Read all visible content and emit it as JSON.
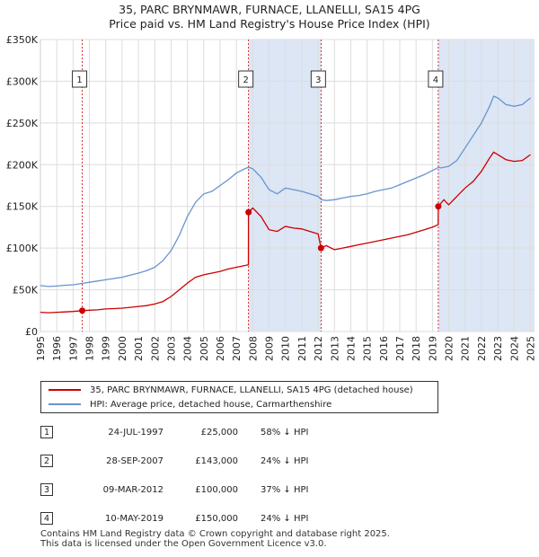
{
  "title_line1": "35, PARC BRYNMAWR, FURNACE, LLANELLI, SA15 4PG",
  "title_line2": "Price paid vs. HM Land Registry's House Price Index (HPI)",
  "chart_data": {
    "type": "line",
    "y_ticks": [
      {
        "value": 0,
        "label": "£0"
      },
      {
        "value": 50000,
        "label": "£50K"
      },
      {
        "value": 100000,
        "label": "£100K"
      },
      {
        "value": 150000,
        "label": "£150K"
      },
      {
        "value": 200000,
        "label": "£200K"
      },
      {
        "value": 250000,
        "label": "£250K"
      },
      {
        "value": 300000,
        "label": "£300K"
      },
      {
        "value": 350000,
        "label": "£350K"
      }
    ],
    "ylim": [
      0,
      350000
    ],
    "xlim": [
      1995.0,
      2025.25
    ],
    "x_ticks": [
      "1995",
      "1996",
      "1997",
      "1998",
      "1999",
      "2000",
      "2001",
      "2002",
      "2003",
      "2004",
      "2005",
      "2006",
      "2007",
      "2008",
      "2009",
      "2010",
      "2011",
      "2012",
      "2013",
      "2014",
      "2015",
      "2016",
      "2017",
      "2018",
      "2019",
      "2020",
      "2021",
      "2022",
      "2023",
      "2024",
      "2025"
    ],
    "colors": {
      "property": "#cc0000",
      "hpi": "#6a93cf",
      "shade": "#dce6f5",
      "marker_line": "#cc0000",
      "grid": "#dddddd"
    },
    "hpi_series": [
      [
        1995.0,
        55000
      ],
      [
        1995.5,
        54000
      ],
      [
        1996.0,
        54500
      ],
      [
        1996.5,
        55500
      ],
      [
        1997.0,
        56000
      ],
      [
        1997.5,
        57500
      ],
      [
        1998.0,
        59000
      ],
      [
        1998.5,
        60500
      ],
      [
        1999.0,
        62000
      ],
      [
        1999.5,
        63500
      ],
      [
        2000.0,
        65000
      ],
      [
        2000.5,
        67500
      ],
      [
        2001.0,
        70000
      ],
      [
        2001.5,
        73000
      ],
      [
        2002.0,
        77000
      ],
      [
        2002.5,
        85000
      ],
      [
        2003.0,
        97000
      ],
      [
        2003.5,
        115000
      ],
      [
        2004.0,
        138000
      ],
      [
        2004.5,
        155000
      ],
      [
        2005.0,
        165000
      ],
      [
        2005.5,
        168000
      ],
      [
        2006.0,
        175000
      ],
      [
        2006.5,
        182000
      ],
      [
        2007.0,
        190000
      ],
      [
        2007.5,
        195000
      ],
      [
        2007.75,
        197000
      ],
      [
        2008.0,
        195000
      ],
      [
        2008.5,
        185000
      ],
      [
        2009.0,
        170000
      ],
      [
        2009.5,
        165000
      ],
      [
        2010.0,
        172000
      ],
      [
        2010.5,
        170000
      ],
      [
        2011.0,
        168000
      ],
      [
        2011.5,
        165000
      ],
      [
        2012.0,
        162000
      ],
      [
        2012.2,
        158000
      ],
      [
        2012.5,
        157000
      ],
      [
        2013.0,
        158000
      ],
      [
        2013.5,
        160000
      ],
      [
        2014.0,
        162000
      ],
      [
        2014.5,
        163000
      ],
      [
        2015.0,
        165000
      ],
      [
        2015.5,
        168000
      ],
      [
        2016.0,
        170000
      ],
      [
        2016.5,
        172000
      ],
      [
        2017.0,
        176000
      ],
      [
        2017.5,
        180000
      ],
      [
        2018.0,
        184000
      ],
      [
        2018.5,
        188000
      ],
      [
        2019.0,
        193000
      ],
      [
        2019.4,
        197000
      ],
      [
        2019.5,
        196000
      ],
      [
        2020.0,
        198000
      ],
      [
        2020.5,
        205000
      ],
      [
        2021.0,
        220000
      ],
      [
        2021.5,
        235000
      ],
      [
        2022.0,
        250000
      ],
      [
        2022.5,
        270000
      ],
      [
        2022.75,
        282000
      ],
      [
        2023.0,
        280000
      ],
      [
        2023.5,
        272000
      ],
      [
        2024.0,
        270000
      ],
      [
        2024.5,
        272000
      ],
      [
        2025.0,
        280000
      ]
    ],
    "property_series": [
      [
        1995.0,
        23000
      ],
      [
        1995.5,
        22500
      ],
      [
        1996.0,
        23000
      ],
      [
        1996.5,
        23500
      ],
      [
        1997.0,
        24000
      ],
      [
        1997.56,
        25000
      ],
      [
        1998.0,
        25500
      ],
      [
        1998.5,
        26000
      ],
      [
        1999.0,
        27000
      ],
      [
        1999.5,
        27500
      ],
      [
        2000.0,
        28000
      ],
      [
        2000.5,
        29000
      ],
      [
        2001.0,
        30000
      ],
      [
        2001.5,
        31000
      ],
      [
        2002.0,
        33000
      ],
      [
        2002.5,
        36000
      ],
      [
        2003.0,
        42000
      ],
      [
        2003.5,
        50000
      ],
      [
        2004.0,
        58000
      ],
      [
        2004.5,
        65000
      ],
      [
        2005.0,
        68000
      ],
      [
        2005.5,
        70000
      ],
      [
        2006.0,
        72000
      ],
      [
        2006.5,
        75000
      ],
      [
        2007.0,
        77000
      ],
      [
        2007.5,
        79000
      ],
      [
        2007.73,
        80000
      ],
      [
        2007.74,
        143000
      ],
      [
        2008.0,
        148000
      ],
      [
        2008.5,
        138000
      ],
      [
        2009.0,
        122000
      ],
      [
        2009.5,
        120000
      ],
      [
        2010.0,
        126000
      ],
      [
        2010.5,
        124000
      ],
      [
        2011.0,
        123000
      ],
      [
        2011.5,
        120000
      ],
      [
        2012.0,
        117000
      ],
      [
        2012.18,
        100000
      ],
      [
        2012.5,
        103000
      ],
      [
        2013.0,
        98000
      ],
      [
        2013.5,
        100000
      ],
      [
        2014.0,
        102000
      ],
      [
        2014.5,
        104000
      ],
      [
        2015.0,
        106000
      ],
      [
        2015.5,
        108000
      ],
      [
        2016.0,
        110000
      ],
      [
        2016.5,
        112000
      ],
      [
        2017.0,
        114000
      ],
      [
        2017.5,
        116000
      ],
      [
        2018.0,
        119000
      ],
      [
        2018.5,
        122000
      ],
      [
        2019.0,
        125000
      ],
      [
        2019.35,
        128000
      ],
      [
        2019.36,
        150000
      ],
      [
        2019.7,
        158000
      ],
      [
        2020.0,
        152000
      ],
      [
        2020.5,
        162000
      ],
      [
        2021.0,
        172000
      ],
      [
        2021.5,
        180000
      ],
      [
        2022.0,
        192000
      ],
      [
        2022.5,
        208000
      ],
      [
        2022.75,
        215000
      ],
      [
        2023.0,
        212000
      ],
      [
        2023.5,
        206000
      ],
      [
        2024.0,
        204000
      ],
      [
        2024.5,
        205000
      ],
      [
        2025.0,
        212000
      ]
    ],
    "sales": [
      {
        "num": "1",
        "x": 1997.56,
        "price": 25000
      },
      {
        "num": "2",
        "x": 2007.74,
        "price": 143000
      },
      {
        "num": "3",
        "x": 2012.18,
        "price": 100000
      },
      {
        "num": "4",
        "x": 2019.36,
        "price": 150000
      }
    ],
    "shaded_spans": [
      [
        2007.74,
        2012.18
      ],
      [
        2019.36,
        2025.25
      ]
    ]
  },
  "legend": {
    "property_label": "35, PARC BRYNMAWR, FURNACE, LLANELLI, SA15 4PG (detached house)",
    "hpi_label": "HPI: Average price, detached house, Carmarthenshire"
  },
  "sales_table": [
    {
      "num": "1",
      "date": "24-JUL-1997",
      "price": "£25,000",
      "hpi": "58% ↓ HPI"
    },
    {
      "num": "2",
      "date": "28-SEP-2007",
      "price": "£143,000",
      "hpi": "24% ↓ HPI"
    },
    {
      "num": "3",
      "date": "09-MAR-2012",
      "price": "£100,000",
      "hpi": "37% ↓ HPI"
    },
    {
      "num": "4",
      "date": "10-MAY-2019",
      "price": "£150,000",
      "hpi": "24% ↓ HPI"
    }
  ],
  "footer": {
    "line1": "Contains HM Land Registry data © Crown copyright and database right 2025.",
    "line2": "This data is licensed under the Open Government Licence v3.0."
  }
}
